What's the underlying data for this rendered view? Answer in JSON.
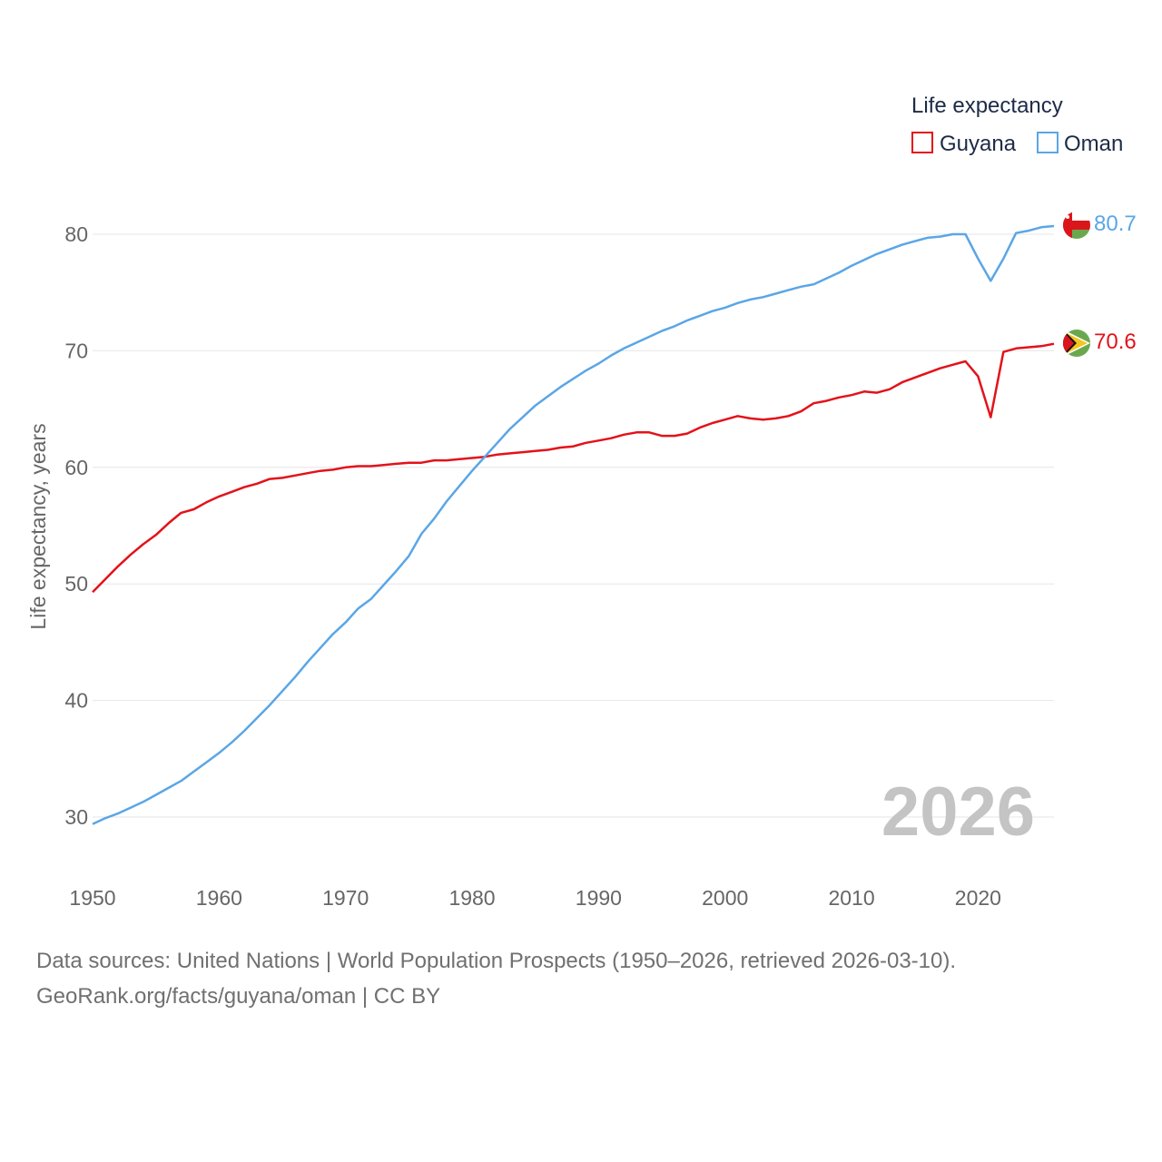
{
  "chart_data": {
    "type": "line",
    "ylabel": "Life expectancy, years",
    "xlabel": "",
    "xlim": [
      1950,
      2026
    ],
    "ylim": [
      25,
      88
    ],
    "x_ticks": [
      1950,
      1960,
      1970,
      1980,
      1990,
      2000,
      2010,
      2020
    ],
    "y_ticks": [
      30,
      40,
      50,
      60,
      70,
      80
    ],
    "grid": true,
    "legend": {
      "title": "Life expectancy",
      "position": "top-right",
      "entries": [
        "Guyana",
        "Oman"
      ]
    },
    "year_label": "2026",
    "x": [
      1950,
      1951,
      1952,
      1953,
      1954,
      1955,
      1956,
      1957,
      1958,
      1959,
      1960,
      1961,
      1962,
      1963,
      1964,
      1965,
      1966,
      1967,
      1968,
      1969,
      1970,
      1971,
      1972,
      1973,
      1974,
      1975,
      1976,
      1977,
      1978,
      1979,
      1980,
      1981,
      1982,
      1983,
      1984,
      1985,
      1986,
      1987,
      1988,
      1989,
      1990,
      1991,
      1992,
      1993,
      1994,
      1995,
      1996,
      1997,
      1998,
      1999,
      2000,
      2001,
      2002,
      2003,
      2004,
      2005,
      2006,
      2007,
      2008,
      2009,
      2010,
      2011,
      2012,
      2013,
      2014,
      2015,
      2016,
      2017,
      2018,
      2019,
      2020,
      2021,
      2022,
      2023,
      2024,
      2025,
      2026
    ],
    "series": [
      {
        "name": "Guyana",
        "color": "#e3121a",
        "end_label": "70.6",
        "flag": "guyana-flag-icon",
        "values": [
          49.3,
          50.4,
          51.5,
          52.5,
          53.4,
          54.2,
          55.2,
          56.1,
          56.4,
          57.0,
          57.5,
          57.9,
          58.3,
          58.6,
          59.0,
          59.1,
          59.3,
          59.5,
          59.7,
          59.8,
          60.0,
          60.1,
          60.1,
          60.2,
          60.3,
          60.4,
          60.4,
          60.6,
          60.6,
          60.7,
          60.8,
          60.9,
          61.1,
          61.2,
          61.3,
          61.4,
          61.5,
          61.7,
          61.8,
          62.1,
          62.3,
          62.5,
          62.8,
          63.0,
          63.0,
          62.7,
          62.7,
          62.9,
          63.4,
          63.8,
          64.1,
          64.4,
          64.2,
          64.1,
          64.2,
          64.4,
          64.8,
          65.5,
          65.7,
          66.0,
          66.2,
          66.5,
          66.4,
          66.7,
          67.3,
          67.7,
          68.1,
          68.5,
          68.8,
          69.1,
          67.8,
          64.3,
          69.9,
          70.2,
          70.3,
          70.4,
          70.6
        ]
      },
      {
        "name": "Oman",
        "color": "#5aa6e6",
        "end_label": "80.7",
        "flag": "oman-flag-icon",
        "values": [
          29.4,
          29.9,
          30.3,
          30.8,
          31.3,
          31.9,
          32.5,
          33.1,
          33.9,
          34.7,
          35.5,
          36.4,
          37.4,
          38.5,
          39.6,
          40.8,
          42.0,
          43.3,
          44.5,
          45.7,
          46.7,
          47.9,
          48.7,
          49.9,
          51.1,
          52.4,
          54.3,
          55.6,
          57.1,
          58.4,
          59.7,
          60.9,
          62.1,
          63.3,
          64.3,
          65.3,
          66.1,
          66.9,
          67.6,
          68.3,
          68.9,
          69.6,
          70.2,
          70.7,
          71.2,
          71.7,
          72.1,
          72.6,
          73.0,
          73.4,
          73.7,
          74.1,
          74.4,
          74.6,
          74.9,
          75.2,
          75.5,
          75.7,
          76.2,
          76.7,
          77.3,
          77.8,
          78.3,
          78.7,
          79.1,
          79.4,
          79.7,
          79.8,
          80.0,
          80.0,
          77.9,
          76.0,
          77.9,
          80.1,
          80.3,
          80.6,
          80.7
        ]
      }
    ]
  },
  "footer": {
    "sources": "Data sources: United Nations | World Population Prospects (1950–2026, retrieved 2026-03-10).",
    "link": "GeoRank.org/facts/guyana/oman | CC BY"
  }
}
